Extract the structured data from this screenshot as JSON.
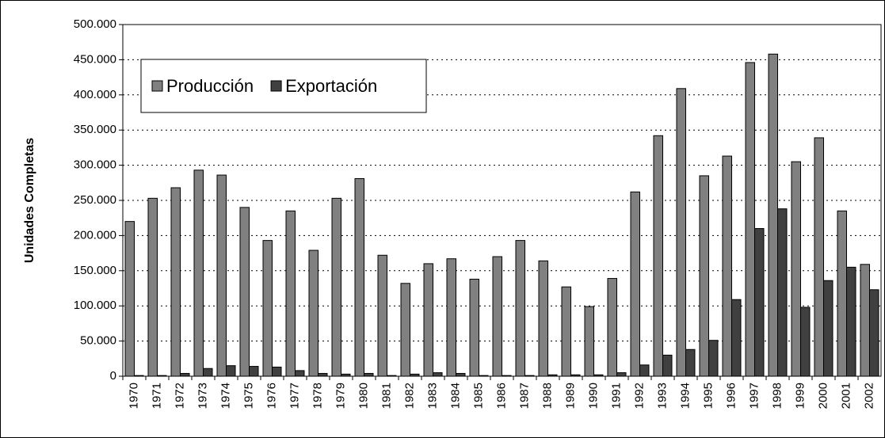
{
  "chart_data": {
    "type": "bar",
    "y_label": "Unidades Completas",
    "categories": [
      "1970",
      "1971",
      "1972",
      "1973",
      "1974",
      "1975",
      "1976",
      "1977",
      "1978",
      "1979",
      "1980",
      "1981",
      "1982",
      "1983",
      "1984",
      "1985",
      "1986",
      "1987",
      "1988",
      "1989",
      "1990",
      "1991",
      "1992",
      "1993",
      "1994",
      "1995",
      "1996",
      "1997",
      "1998",
      "1999",
      "2000",
      "2001",
      "2002"
    ],
    "series": [
      {
        "name": "Producción",
        "color": "#808080",
        "values": [
          220000,
          253000,
          268000,
          293000,
          286000,
          240000,
          193000,
          235000,
          179000,
          253000,
          281000,
          172000,
          132000,
          160000,
          167000,
          138000,
          170000,
          193000,
          164000,
          127000,
          99000,
          139000,
          262000,
          342000,
          409000,
          285000,
          313000,
          446000,
          458000,
          305000,
          339000,
          235000,
          159000
        ]
      },
      {
        "name": "Exportación",
        "color": "#404040",
        "values": [
          1000,
          1000,
          4000,
          11000,
          15000,
          14000,
          13000,
          8000,
          4000,
          3000,
          4000,
          1000,
          3000,
          5000,
          4000,
          1000,
          1000,
          1000,
          2000,
          2000,
          2000,
          5000,
          16000,
          30000,
          38000,
          51000,
          109000,
          210000,
          238000,
          98000,
          136000,
          155000,
          123000
        ]
      }
    ],
    "ylim": [
      0,
      500000
    ],
    "yticks": [
      0,
      {
        "value": 50000,
        "label": "50.000"
      },
      {
        "value": 100000,
        "label": "100.000"
      },
      {
        "value": 150000,
        "label": "150.000"
      },
      {
        "value": 200000,
        "label": "200.000"
      },
      {
        "value": 250000,
        "label": "250.000"
      },
      {
        "value": 300000,
        "label": "300.000"
      },
      {
        "value": 350000,
        "label": "350.000"
      },
      {
        "value": 400000,
        "label": "400.000"
      },
      {
        "value": 450000,
        "label": "450.000"
      },
      {
        "value": 500000,
        "label": "500.000"
      }
    ],
    "grid": true,
    "legend": "upper left"
  }
}
